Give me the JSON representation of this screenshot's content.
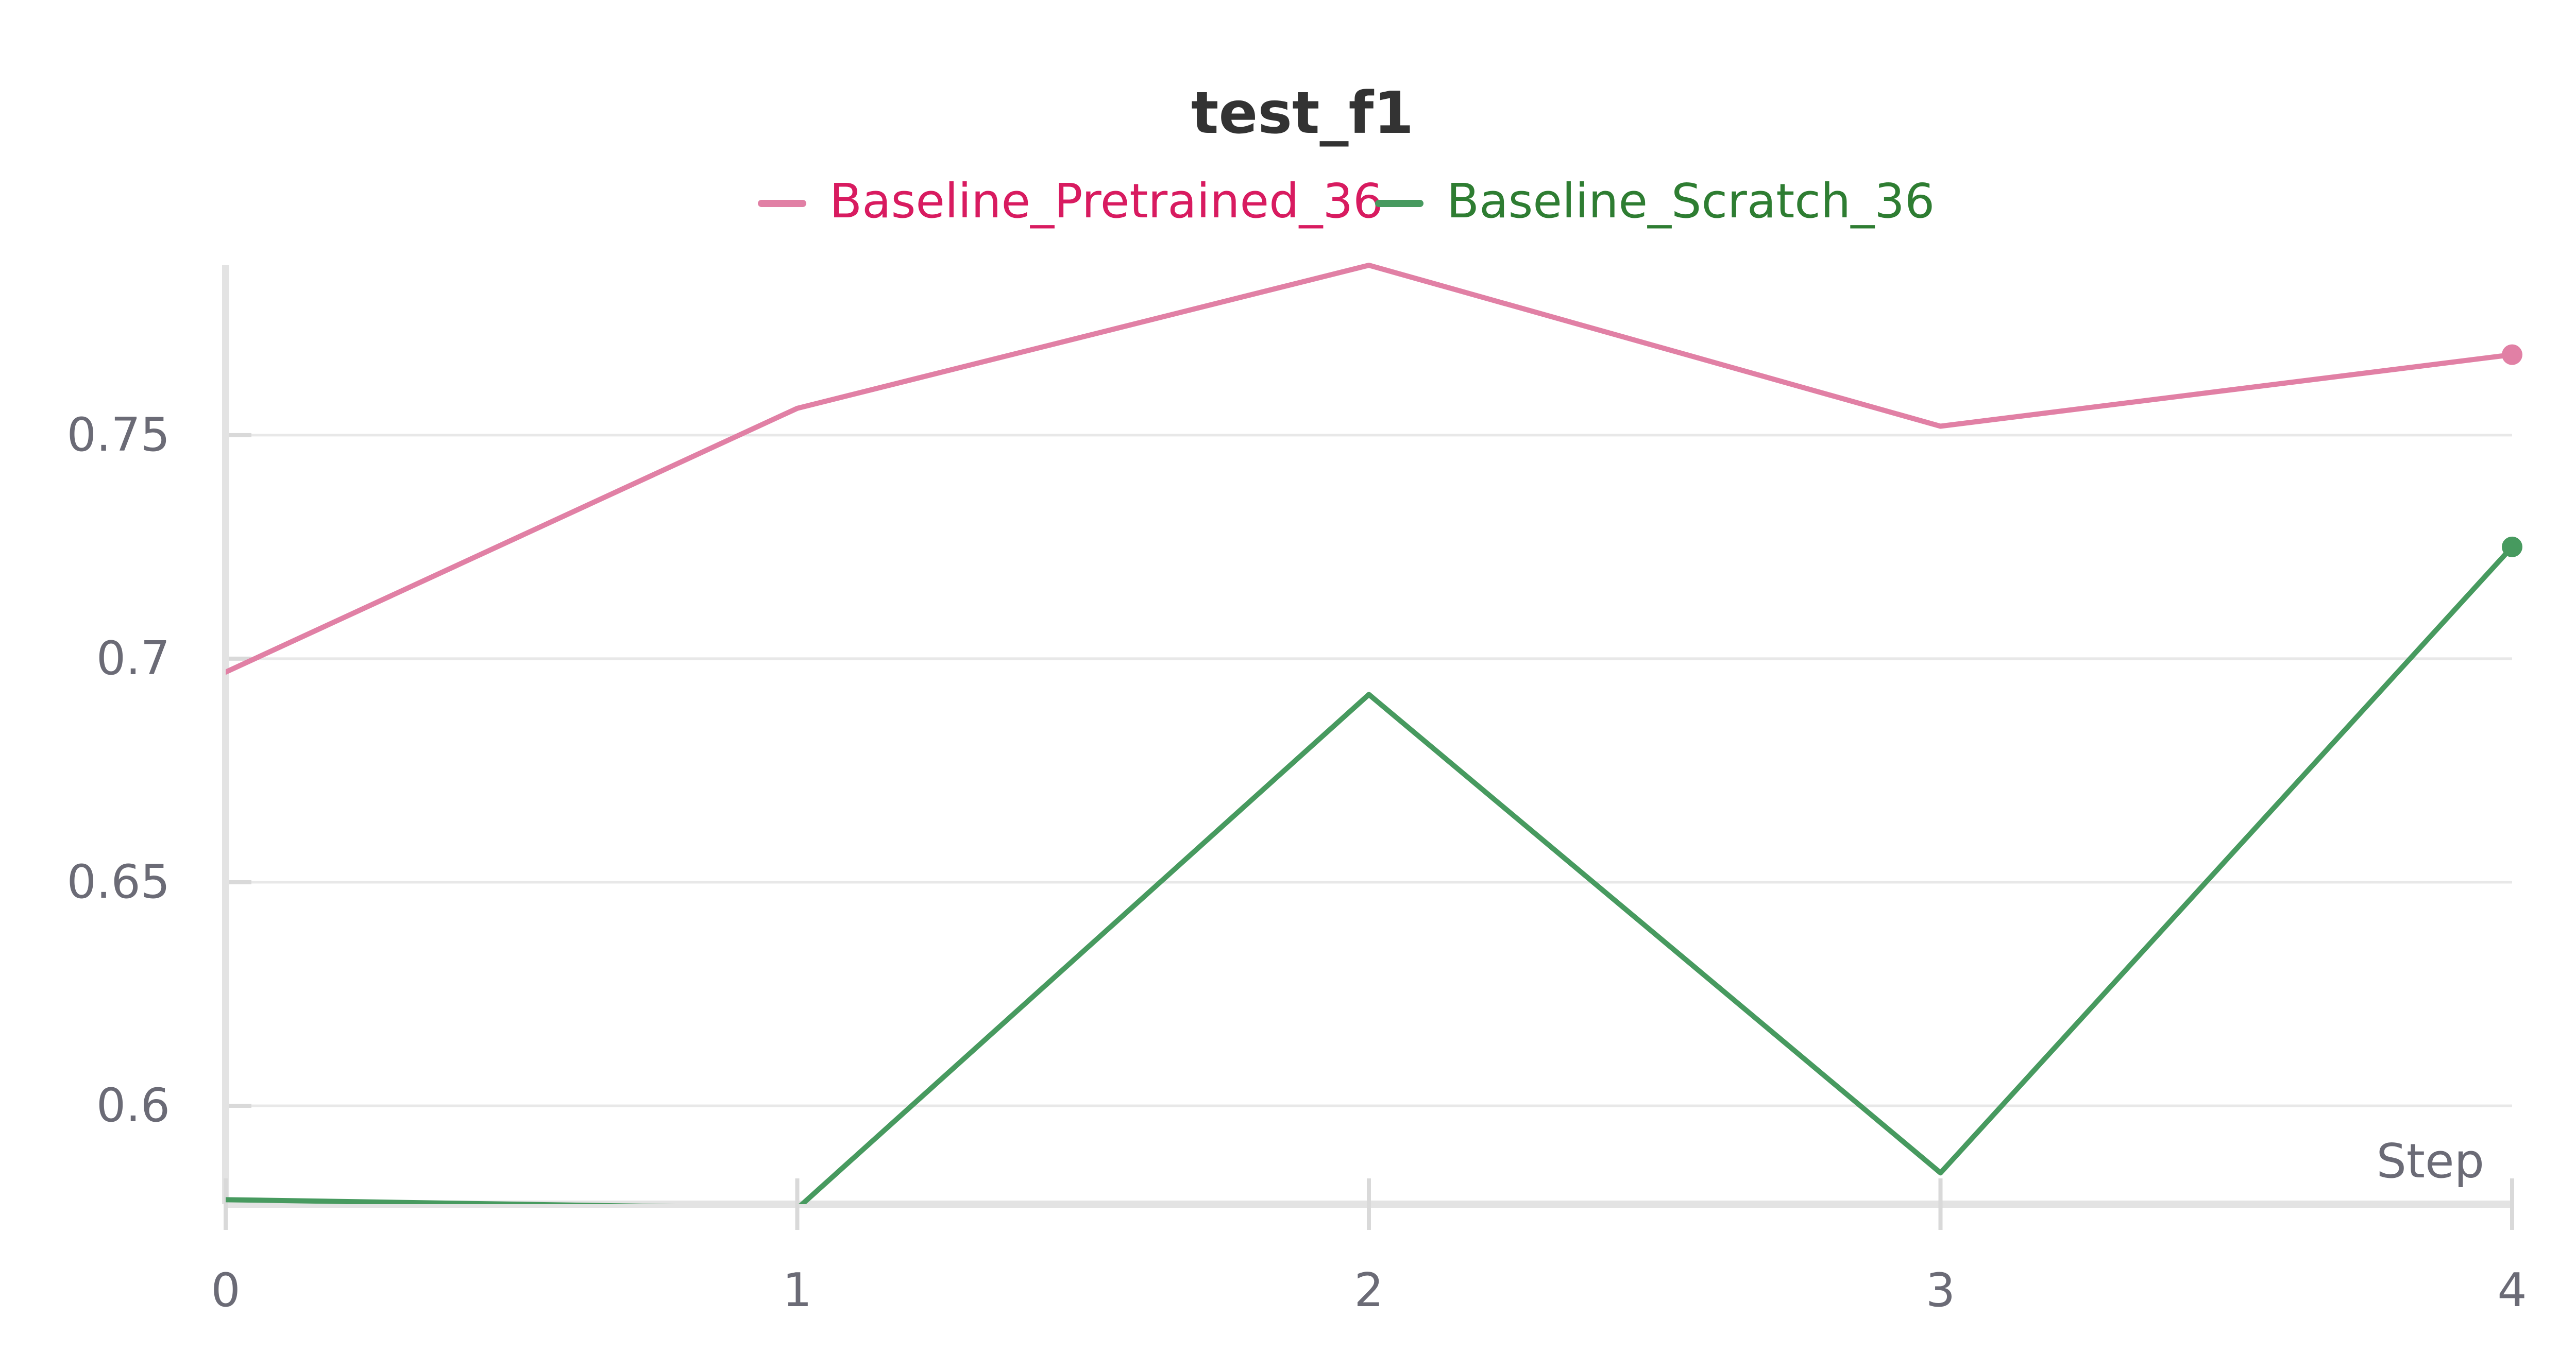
{
  "chart_data": {
    "type": "line",
    "title": "test_f1",
    "xlabel": "Step",
    "ylabel": "",
    "x": [
      0,
      1,
      2,
      3,
      4
    ],
    "xlim": [
      0,
      4
    ],
    "ylim": [
      0.578,
      0.788
    ],
    "x_ticks": [
      "0",
      "1",
      "2",
      "3",
      "4"
    ],
    "y_ticks": [
      {
        "value": 0.6,
        "label": "0.6"
      },
      {
        "value": 0.65,
        "label": "0.65"
      },
      {
        "value": 0.7,
        "label": "0.7"
      },
      {
        "value": 0.75,
        "label": "0.75"
      }
    ],
    "grid": true,
    "legend_position": "top-center",
    "series": [
      {
        "name": "Baseline_Pretrained_36",
        "color": "#e180a5",
        "label_color": "#d81b60",
        "values": [
          0.697,
          0.756,
          0.788,
          0.752,
          0.768
        ]
      },
      {
        "name": "Baseline_Scratch_36",
        "color": "#479a5f",
        "label_color": "#2e7d32",
        "values": [
          0.579,
          0.577,
          0.692,
          0.585,
          0.725
        ]
      }
    ]
  }
}
